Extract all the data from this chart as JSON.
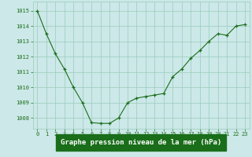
{
  "x": [
    0,
    1,
    2,
    3,
    4,
    5,
    6,
    7,
    8,
    9,
    10,
    11,
    12,
    13,
    14,
    15,
    16,
    17,
    18,
    19,
    20,
    21,
    22,
    23
  ],
  "y": [
    1015.0,
    1013.5,
    1012.2,
    1011.2,
    1010.0,
    1009.0,
    1007.7,
    1007.65,
    1007.65,
    1008.0,
    1009.0,
    1009.3,
    1009.4,
    1009.5,
    1009.6,
    1010.7,
    1011.2,
    1011.9,
    1012.4,
    1013.0,
    1013.5,
    1013.4,
    1014.0,
    1014.1
  ],
  "line_color": "#1a6e1a",
  "marker": "+",
  "bg_color": "#cce8e8",
  "grid_color": "#99ccbb",
  "ylabel_ticks": [
    1008,
    1009,
    1010,
    1011,
    1012,
    1013,
    1014,
    1015
  ],
  "ylim": [
    1007.3,
    1015.6
  ],
  "xlim": [
    -0.5,
    23.5
  ],
  "tick_color": "#1a6e1a",
  "tick_fontsize": 5.0,
  "xlabel_text": "Graphe pression niveau de la mer (hPa)",
  "xlabel_fontsize": 6.5,
  "label_bg_color": "#1a6e1a",
  "label_text_color": "#ffffff"
}
